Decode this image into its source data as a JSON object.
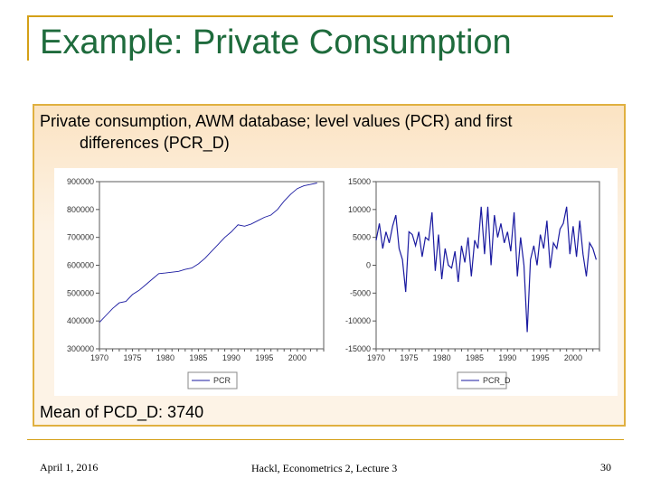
{
  "slide": {
    "title": "Example: Private Consumption",
    "description_line1": "Private consumption, AWM database; level values (PCR) and first",
    "description_line2": "differences (PCR_D)",
    "mean_text": "Mean of PCD_D: 3740",
    "footer_date": "April 1, 2016",
    "footer_center": "Hackl, Econometrics 2, Lecture 3",
    "page_number": "30"
  },
  "colors": {
    "title": "#1e6b3c",
    "gold": "#d4a017",
    "line": "#1a1aa0"
  },
  "chart_data": [
    {
      "type": "line",
      "legend": "PCR",
      "ylim": [
        300000,
        900000
      ],
      "yticks": [
        "900000",
        "800000",
        "700000",
        "600000",
        "500000",
        "400000",
        "300000"
      ],
      "xticks": [
        "1970",
        "1975",
        "1980",
        "1985",
        "1990",
        "1995",
        "2000"
      ],
      "xlim": [
        1970,
        2004
      ],
      "x_start": 1970,
      "x_step": 1,
      "values": [
        395000,
        420000,
        445000,
        465000,
        470000,
        495000,
        510000,
        530000,
        550000,
        570000,
        572000,
        575000,
        578000,
        585000,
        590000,
        605000,
        625000,
        650000,
        675000,
        700000,
        720000,
        745000,
        740000,
        748000,
        760000,
        772000,
        780000,
        800000,
        830000,
        855000,
        875000,
        885000,
        890000,
        895000
      ]
    },
    {
      "type": "line",
      "legend": "PCR_D",
      "ylim": [
        -15000,
        15000
      ],
      "yticks": [
        "15000",
        "10000",
        "5000",
        "0",
        "-5000",
        "-10000",
        "-15000"
      ],
      "xticks": [
        "1970",
        "1975",
        "1980",
        "1985",
        "1990",
        "1995",
        "2000"
      ],
      "xlim": [
        1970,
        2004
      ],
      "x_start": 1970,
      "x_step": 0.5,
      "values": [
        4500,
        7500,
        3000,
        6000,
        4000,
        7000,
        9000,
        3000,
        1000,
        -4800,
        6000,
        5500,
        3500,
        6000,
        1500,
        5000,
        4500,
        9500,
        -1000,
        5500,
        -2500,
        3000,
        0,
        -500,
        2500,
        -3000,
        3500,
        500,
        5000,
        -2000,
        4500,
        3000,
        10500,
        2000,
        10500,
        0,
        9000,
        5000,
        7500,
        4000,
        6000,
        2500,
        9500,
        -2000,
        5000,
        0,
        -12000,
        1000,
        3500,
        0,
        5500,
        3000,
        8000,
        -500,
        4000,
        3000,
        6500,
        7500,
        10500,
        2000,
        7000,
        1500,
        8000,
        2000,
        -2000,
        4000,
        3000,
        1000
      ]
    }
  ]
}
